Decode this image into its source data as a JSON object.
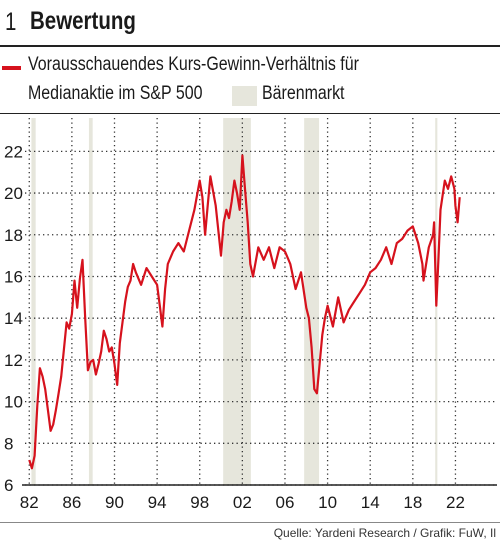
{
  "figure": {
    "number": "1",
    "title": "Bewertung"
  },
  "legend": {
    "series_line1": "Vorausschauendes Kurs-Gewinn-Verhältnis für",
    "series_line2": "Medianaktie im S&P 500",
    "shade_label": "Bärenmarkt"
  },
  "source": "Quelle: Yardeni Research / Grafik: FuW, Il",
  "colors": {
    "series": "#d6121d",
    "shade": "#e6e6dc",
    "grid": "#333333",
    "text": "#1a1a1a"
  },
  "chart_data": {
    "type": "line",
    "title": "",
    "xlabel": "",
    "ylabel": "",
    "xlim": [
      1981.6,
      2025.9
    ],
    "ylim": [
      6,
      23.6
    ],
    "x_ticks": [
      {
        "value": 1982,
        "label": "82"
      },
      {
        "value": 1986,
        "label": "86"
      },
      {
        "value": 1990,
        "label": "90"
      },
      {
        "value": 1994,
        "label": "94"
      },
      {
        "value": 1998,
        "label": "98"
      },
      {
        "value": 2002,
        "label": "02"
      },
      {
        "value": 2006,
        "label": "06"
      },
      {
        "value": 2010,
        "label": "10"
      },
      {
        "value": 2014,
        "label": "14"
      },
      {
        "value": 2018,
        "label": "18"
      },
      {
        "value": 2022,
        "label": "22"
      }
    ],
    "y_ticks": [
      6,
      8,
      10,
      12,
      14,
      16,
      18,
      20,
      22
    ],
    "grid": true,
    "grid_style": "dotted",
    "shaded_periods_label": "Bärenmarkt",
    "shaded_periods": [
      [
        2000.2,
        2002.8
      ],
      [
        2007.8,
        2009.2
      ],
      [
        1987.6,
        1987.95
      ],
      [
        2020.1,
        2020.3
      ],
      [
        1982.2,
        1982.6
      ]
    ],
    "series": [
      {
        "name": "Vorausschauendes Kurs-Gewinn-Verhältnis für Medianaktie im S&P 500",
        "x": [
          1982.0,
          1982.25,
          1982.5,
          1982.75,
          1983.0,
          1983.25,
          1983.5,
          1983.75,
          1984.0,
          1984.25,
          1984.5,
          1984.75,
          1985.0,
          1985.25,
          1985.5,
          1985.75,
          1986.0,
          1986.25,
          1986.5,
          1986.75,
          1987.0,
          1987.25,
          1987.5,
          1987.75,
          1988.0,
          1988.25,
          1988.5,
          1988.75,
          1989.0,
          1989.25,
          1989.5,
          1989.75,
          1990.0,
          1990.25,
          1990.5,
          1990.75,
          1991.0,
          1991.25,
          1991.5,
          1991.75,
          1992.0,
          1992.5,
          1993.0,
          1993.5,
          1994.0,
          1994.25,
          1994.5,
          1994.75,
          1995.0,
          1995.5,
          1996.0,
          1996.5,
          1997.0,
          1997.5,
          1998.0,
          1998.25,
          1998.5,
          1998.75,
          1999.0,
          1999.5,
          2000.0,
          2000.25,
          2000.5,
          2000.75,
          2001.0,
          2001.25,
          2001.5,
          2001.75,
          2002.0,
          2002.25,
          2002.5,
          2002.75,
          2003.0,
          2003.5,
          2004.0,
          2004.5,
          2005.0,
          2005.5,
          2006.0,
          2006.5,
          2007.0,
          2007.5,
          2008.0,
          2008.25,
          2008.5,
          2008.75,
          2009.0,
          2009.25,
          2009.5,
          2009.75,
          2010.0,
          2010.5,
          2011.0,
          2011.5,
          2012.0,
          2012.5,
          2013.0,
          2013.5,
          2014.0,
          2014.5,
          2015.0,
          2015.5,
          2016.0,
          2016.5,
          2017.0,
          2017.5,
          2018.0,
          2018.5,
          2018.9,
          2019.0,
          2019.5,
          2019.9,
          2020.0,
          2020.2,
          2020.4,
          2020.6,
          2021.0,
          2021.3,
          2021.6,
          2021.9,
          2022.0,
          2022.2,
          2022.4
        ],
        "y": [
          7.2,
          6.8,
          7.4,
          9.8,
          11.6,
          11.2,
          10.6,
          9.6,
          8.6,
          8.9,
          9.6,
          10.4,
          11.2,
          12.5,
          13.8,
          13.5,
          14.2,
          15.8,
          14.5,
          15.9,
          16.8,
          14.0,
          11.5,
          11.9,
          12.0,
          11.3,
          11.8,
          12.4,
          13.4,
          13.0,
          12.4,
          12.6,
          11.8,
          10.8,
          12.8,
          13.8,
          14.8,
          15.5,
          15.8,
          16.6,
          16.2,
          15.6,
          16.4,
          16.0,
          15.6,
          14.6,
          13.6,
          15.4,
          16.6,
          17.2,
          17.6,
          17.2,
          18.2,
          19.2,
          20.6,
          19.8,
          18.0,
          19.4,
          20.8,
          19.4,
          17.0,
          18.6,
          19.2,
          18.8,
          19.6,
          20.6,
          20.0,
          19.2,
          21.8,
          20.2,
          18.6,
          16.6,
          16.0,
          17.4,
          16.8,
          17.4,
          16.4,
          17.4,
          17.2,
          16.6,
          15.4,
          16.2,
          14.5,
          14.0,
          12.6,
          10.6,
          10.4,
          11.8,
          13.2,
          14.0,
          14.6,
          13.6,
          15.0,
          13.8,
          14.4,
          14.8,
          15.2,
          15.6,
          16.2,
          16.4,
          16.8,
          17.4,
          16.6,
          17.6,
          17.8,
          18.2,
          18.4,
          17.6,
          16.6,
          15.8,
          17.4,
          18.0,
          18.6,
          14.6,
          16.8,
          19.2,
          20.6,
          20.2,
          20.8,
          20.2,
          19.4,
          18.6,
          19.8
        ]
      }
    ]
  }
}
